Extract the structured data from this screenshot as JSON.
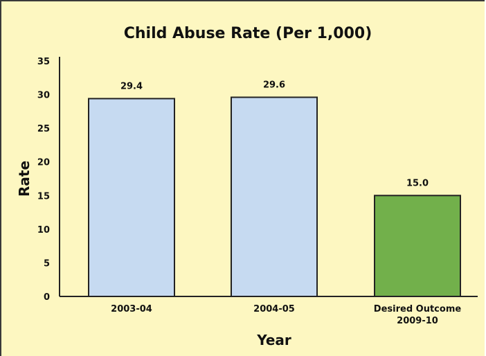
{
  "chart_data": {
    "type": "bar",
    "title": "Child Abuse Rate (Per 1,000)",
    "xlabel": "Year",
    "ylabel": "Rate",
    "ylim": [
      0,
      35
    ],
    "yticks": [
      0,
      5,
      10,
      15,
      20,
      25,
      30,
      35
    ],
    "categories": [
      [
        "2003-04"
      ],
      [
        "2004-05"
      ],
      [
        "Desired Outcome",
        "2009-10"
      ]
    ],
    "values": [
      29.4,
      29.6,
      15.0
    ],
    "value_labels": [
      "29.4",
      "29.6",
      "15.0"
    ],
    "bar_colors": [
      "#c6daf1",
      "#c6daf1",
      "#72b04b"
    ],
    "background": "#fdf7c1",
    "grid": false,
    "legend": "none"
  }
}
